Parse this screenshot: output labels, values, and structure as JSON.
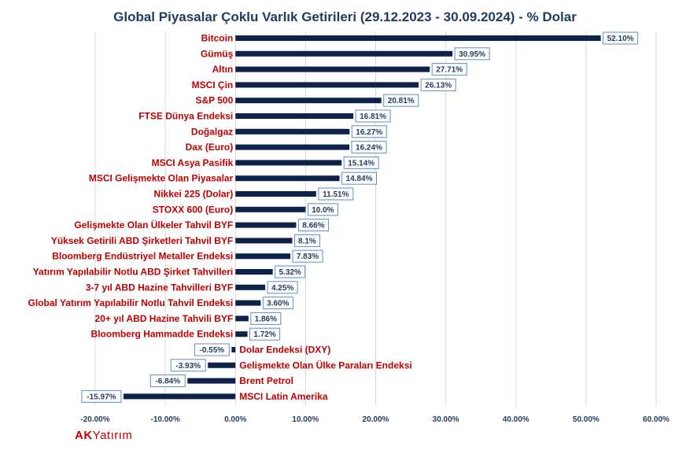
{
  "logo": {
    "brand_bold": "AK",
    "brand_light": "Yatırım"
  },
  "colors": {
    "bar": "#0d2149",
    "category_label": "#c00000",
    "label_border": "#5b8ec9",
    "label_text": "#1f3b5f",
    "grid": "#d9d9d9",
    "axis_text": "#1f3b5f"
  },
  "chart_data": {
    "type": "bar",
    "orientation": "horizontal",
    "title": "Global Piyasalar Çoklu Varlık Getirileri (29.12.2023 - 30.09.2024) - % Dolar",
    "xlabel": "",
    "ylabel": "",
    "xlim": [
      -20,
      60
    ],
    "xticks": [
      -20,
      -10,
      0,
      10,
      20,
      30,
      40,
      50,
      60
    ],
    "xtick_labels": [
      "-20.00%",
      "-10.00%",
      "0.00%",
      "10.00%",
      "20.00%",
      "30.00%",
      "40.00%",
      "50.00%",
      "60.00%"
    ],
    "grid": "vertical",
    "categories": [
      "Bitcoin",
      "Gümüş",
      "Altın",
      "MSCI Çin",
      "S&P 500",
      "FTSE Dünya Endeksi",
      "Doğalgaz",
      "Dax (Euro)",
      "MSCI Asya Pasifik",
      "MSCI Gelişmekte Olan Piyasalar",
      "Nikkei 225 (Dolar)",
      "STOXX 600 (Euro)",
      "Gelişmekte Olan Ülkeler Tahvil BYF",
      "Yüksek Getirili ABD Şirketleri Tahvil BYF",
      "Bloomberg Endüstriyel Metaller Endeksi",
      "Yatırım Yapılabilir Notlu  ABD Şirket Tahvilleri",
      "3-7 yıl ABD Hazine Tahvilleri BYF",
      "Global Yatırım Yapılabilir Notlu Tahvil Endeksi",
      "20+ yıl ABD Hazine Tahvili BYF",
      "Bloomberg Hammadde Endeksi",
      "Dolar Endeksi (DXY)",
      "Gelişmekte Olan Ülke Paraları Endeksi",
      "Brent Petrol",
      "MSCI Latin Amerika"
    ],
    "values": [
      52.1,
      30.95,
      27.71,
      26.13,
      20.81,
      16.81,
      16.27,
      16.24,
      15.14,
      14.84,
      11.51,
      10.0,
      8.66,
      8.1,
      7.83,
      5.32,
      4.25,
      3.6,
      1.86,
      1.72,
      -0.55,
      -3.93,
      -6.84,
      -15.97
    ],
    "value_labels": [
      "52.10%",
      "30.95%",
      "27.71%",
      "26.13%",
      "20.81%",
      "16.81%",
      "16.27%",
      "16.24%",
      "15.14%",
      "14.84%",
      "11.51%",
      "10.0%",
      "8.66%",
      "8.1%",
      "7.83%",
      "5.32%",
      "4.25%",
      "3.60%",
      "1.86%",
      "1.72%",
      "-0.55%",
      "-3.93%",
      "-6.84%",
      "-15.97%"
    ]
  }
}
